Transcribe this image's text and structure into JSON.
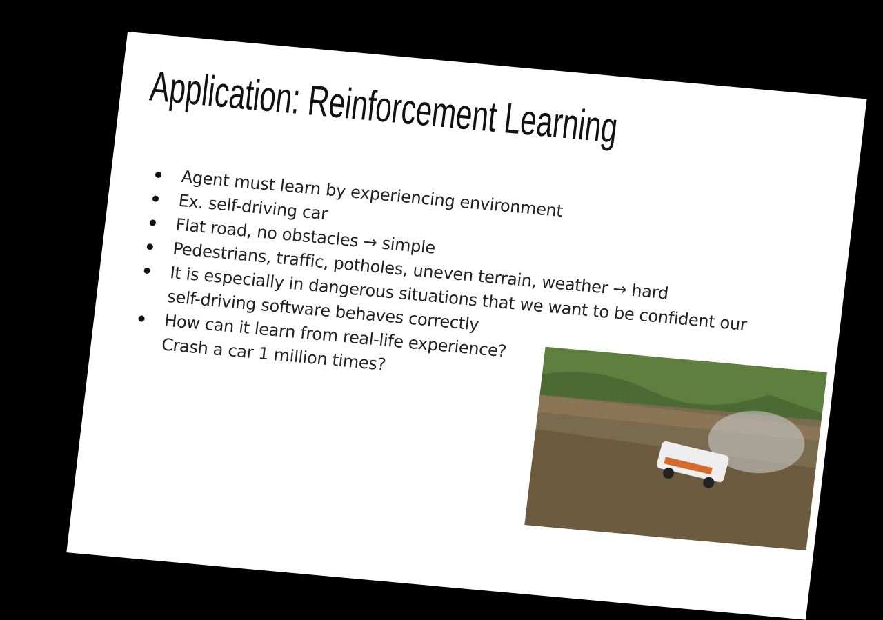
{
  "slide": {
    "title": "Application: Reinforcement Learning",
    "bullets": [
      [
        "Agent must learn by experiencing environment"
      ],
      [
        "Ex. self-driving car"
      ],
      [
        "Flat road, no obstacles → simple"
      ],
      [
        "Pedestrians, traffic, potholes, uneven terrain, weather → hard"
      ],
      [
        "It is especially in dangerous situations that we want to be confident our",
        "self-driving software behaves correctly"
      ],
      [
        "How can it learn from real-life experience?",
        "Crash a car 1 million times?"
      ]
    ]
  }
}
